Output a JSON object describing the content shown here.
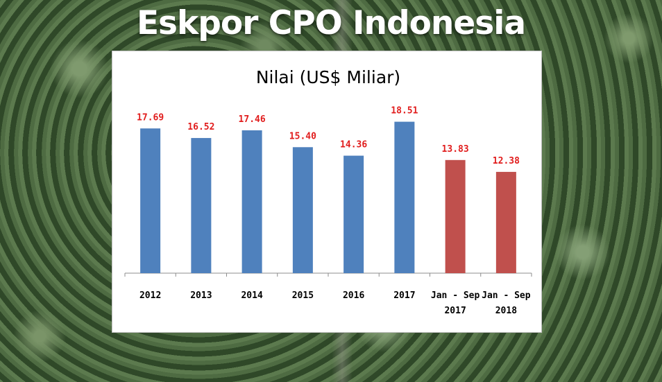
{
  "page": {
    "headline": "Eskpor CPO Indonesia"
  },
  "colors": {
    "blue_bar": "#4f81bd",
    "red_bar": "#c0504d",
    "value_label": "#e11d1d"
  },
  "chart_data": {
    "type": "bar",
    "title": "Nilai (US$ Miliar)",
    "categories": [
      [
        "2012"
      ],
      [
        "2013"
      ],
      [
        "2014"
      ],
      [
        "2015"
      ],
      [
        "2016"
      ],
      [
        "2017"
      ],
      [
        "Jan - Sep",
        "2017"
      ],
      [
        "Jan - Sep",
        "2018"
      ]
    ],
    "values": [
      17.69,
      16.52,
      17.46,
      15.4,
      14.36,
      18.51,
      13.83,
      12.38
    ],
    "value_labels": [
      "17.69",
      "16.52",
      "17.46",
      "15.40",
      "14.36",
      "18.51",
      "13.83",
      "12.38"
    ],
    "bar_colors": [
      "#4f81bd",
      "#4f81bd",
      "#4f81bd",
      "#4f81bd",
      "#4f81bd",
      "#4f81bd",
      "#c0504d",
      "#c0504d"
    ],
    "xlabel": "",
    "ylabel": "",
    "ylim": [
      0,
      20
    ],
    "grid": false,
    "legend": "none"
  }
}
